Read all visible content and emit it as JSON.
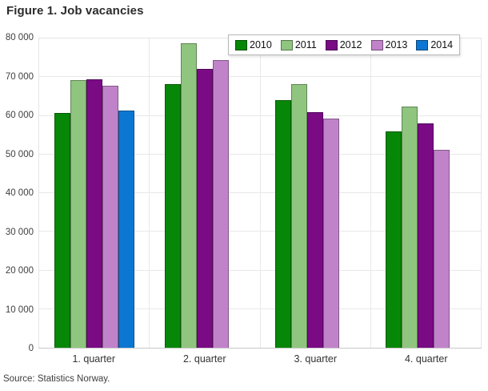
{
  "title": "Figure 1. Job vacancies",
  "source": "Source: Statistics Norway.",
  "chart_data": {
    "type": "bar",
    "title": "Figure 1. Job vacancies",
    "categories": [
      "1. quarter",
      "2. quarter",
      "3. quarter",
      "4. quarter"
    ],
    "series": [
      {
        "name": "2010",
        "color": "#078707",
        "values": [
          60700,
          68200,
          64100,
          55900
        ]
      },
      {
        "name": "2011",
        "color": "#8FC57F",
        "values": [
          69200,
          78700,
          68100,
          62300
        ]
      },
      {
        "name": "2012",
        "color": "#7A0B85",
        "values": [
          69500,
          72100,
          61000,
          58000
        ]
      },
      {
        "name": "2013",
        "color": "#C083C9",
        "values": [
          67700,
          74500,
          59200,
          51100
        ]
      },
      {
        "name": "2014",
        "color": "#0C77D2",
        "values": [
          61300,
          null,
          null,
          null
        ]
      }
    ],
    "xlabel": "",
    "ylabel": "",
    "ylim": [
      0,
      80000
    ],
    "yticks": [
      {
        "value": 0,
        "label": "0"
      },
      {
        "value": 10000,
        "label": "10 000"
      },
      {
        "value": 20000,
        "label": "20 000"
      },
      {
        "value": 30000,
        "label": "30 000"
      },
      {
        "value": 40000,
        "label": "40 000"
      },
      {
        "value": 50000,
        "label": "50 000"
      },
      {
        "value": 60000,
        "label": "60 000"
      },
      {
        "value": 70000,
        "label": "70 000"
      },
      {
        "value": 80000,
        "label": "80 000"
      }
    ],
    "grid": true,
    "legend_position": "top-right",
    "source_note": "Source: Statistics Norway."
  }
}
